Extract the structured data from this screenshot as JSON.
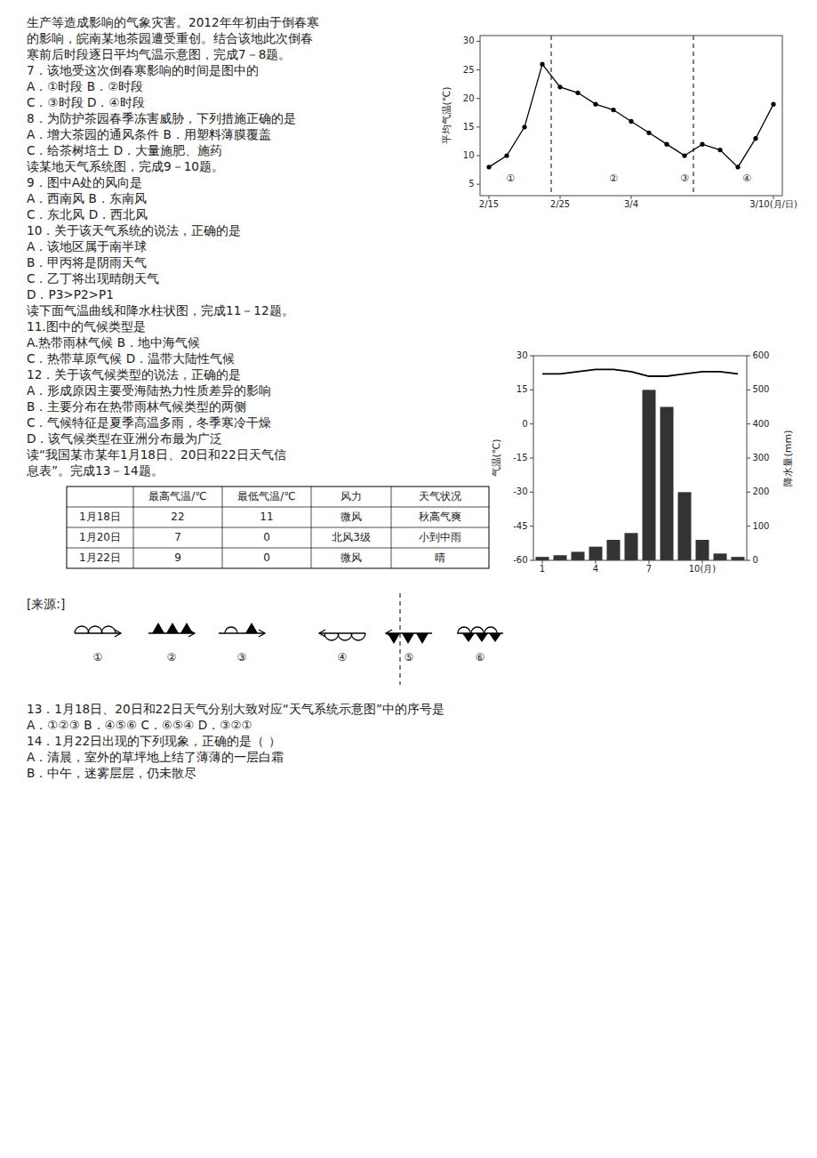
{
  "chart_data": [
    {
      "type": "text",
      "annotations": [
        "生产等造成影响的气象灾害。2012年年初由于倒春寒",
        "的影响，皖南某地茶园遭受重创。结合该地此次倒春",
        "寒前后时段逐日平均气温示意图，完成7－8题。",
        "7．该地受这次倒春寒影响的时间是图中的",
        "A．①时段          B．②时段",
        "C．③时段          D．④时段",
        "8．为防护茶园春季冻害威胁，下列措施正确的是",
        "A．增大茶园的通风条件    B．用塑料薄膜覆盖",
        "C．给茶树培土          D．大量施肥、施药",
        "读某地天气系统图，完成9－10题。",
        "9．图中A处的风向是",
        "A．西南风          B．东南风",
        "C．东北风          D．西北风",
        "10．关于该天气系统的说法，正确的是",
        "A．该地区属于南半球",
        "B．甲丙将是阴雨天气",
        "C．乙丁将出现晴朗天气",
        "D．P3>P2>P1",
        "读下面气温曲线和降水柱状图，完成11－12题。",
        "11.图中的气候类型是",
        "A.热带雨林气候   B．地中海气候",
        "C．热带草原气候   D．温带大陆性气候",
        "12．关于该气候类型的说法，正确的是",
        "A．形成原因主要受海陆热力性质差异的影响",
        "B．主要分布在热带雨林气候类型的两侧",
        "C．气候特征是夏季高温多雨，冬季寒冷干燥",
        "D．该气候类型在亚洲分布最为广泛",
        "读“我国某市某年1月18日、20日和22日天气信",
        "息表”。完成13－14题。"
      ]
    },
    {
      "type": "line",
      "ylabel": "平均气温(℃)",
      "x": [
        1,
        2,
        3,
        4,
        5,
        6,
        7,
        8,
        9,
        10,
        11,
        12,
        13,
        14,
        15,
        16,
        17
      ],
      "values": [
        8,
        10,
        15,
        26,
        22,
        21,
        19,
        18,
        16,
        14,
        12,
        10,
        12,
        11,
        8,
        13,
        19
      ],
      "color": "#000000",
      "marker": "circle",
      "line_style": "solid",
      "xlim": [
        0.5,
        17.5
      ],
      "ylim": [
        3,
        31
      ],
      "xticks": [
        {
          "value": 1,
          "label": "2/15"
        },
        {
          "value": 5,
          "label": "2/25"
        },
        {
          "value": 9,
          "label": "3/4"
        },
        {
          "value": 17,
          "label": "3/10(月/日)"
        }
      ],
      "yticks": [
        5,
        10,
        15,
        20,
        25,
        30
      ],
      "vlines": [
        4.5,
        12.5
      ],
      "annotations": [
        {
          "text": "①",
          "x": 2.2,
          "y": 5.5
        },
        {
          "text": "②",
          "x": 8.0,
          "y": 5.5
        },
        {
          "text": "③",
          "x": 12.0,
          "y": 5.5
        },
        {
          "text": "④",
          "x": 15.5,
          "y": 5.5
        }
      ],
      "grid": false
    },
    {
      "type": "bar",
      "x": [
        1,
        2,
        3,
        4,
        5,
        6,
        7,
        8,
        9,
        10,
        11,
        12
      ],
      "xlim": [
        0.5,
        12.5
      ],
      "xticks": [
        1,
        4,
        7,
        {
          "value": 10,
          "label": "10(月)"
        }
      ],
      "ylabel": "气温(℃)",
      "ylim": [
        -60,
        30
      ],
      "yticks": [
        -60,
        -45,
        -30,
        -15,
        0,
        15,
        30
      ],
      "y2label": "降水量(mm)",
      "y2lim": [
        0,
        600
      ],
      "y2ticks": [
        0,
        100,
        200,
        300,
        400,
        500,
        600
      ],
      "series": [
        {
          "type": "bar",
          "axis": "y2",
          "color": "#333333",
          "values": [
            10,
            15,
            25,
            40,
            60,
            80,
            500,
            450,
            200,
            60,
            20,
            10
          ]
        },
        {
          "type": "line",
          "color": "#000000",
          "values": [
            22,
            22,
            23,
            24,
            24,
            23,
            21,
            21,
            22,
            23,
            23,
            22
          ]
        }
      ],
      "grid": false
    },
    {
      "type": "table",
      "columns": [
        null,
        "最高气温/℃",
        "最低气温/℃",
        "风力",
        "天气状况"
      ],
      "rows": [
        [
          "1月18日",
          "22",
          "11",
          "微风",
          "秋高气爽"
        ],
        [
          "1月20日",
          "7",
          "0",
          "北风3级",
          "小到中雨"
        ],
        [
          "1月22日",
          "9",
          "0",
          "微风",
          "晴"
        ]
      ]
    },
    {
      "type": "text",
      "annotations": [
        "[来源:]"
      ]
    },
    {
      "type": "symbols",
      "series": [
        {
          "name": "①",
          "marker": "warm-front-right"
        },
        {
          "name": "②",
          "marker": "cold-front-right"
        },
        {
          "name": "③",
          "marker": "occluded-front-right"
        },
        {
          "name": "④",
          "marker": "warm-front-left"
        },
        {
          "name": "⑤",
          "marker": "cold-front-left"
        },
        {
          "name": "⑥",
          "marker": "stationary-front"
        }
      ]
    },
    {
      "type": "text",
      "annotations": [
        "13．1月18日、20日和22日天气分别大致对应“天气系统示意图”中的序号是",
        "A．①②③          B．④⑤⑥          C．⑥⑤④          D．③②①",
        "14．1月22日出现的下列现象，正确的是（    ）",
        "A．清晨，室外的草坪地上结了薄薄的一层白霜",
        "B．中午，迷雾层层，仍未散尽"
      ]
    }
  ]
}
